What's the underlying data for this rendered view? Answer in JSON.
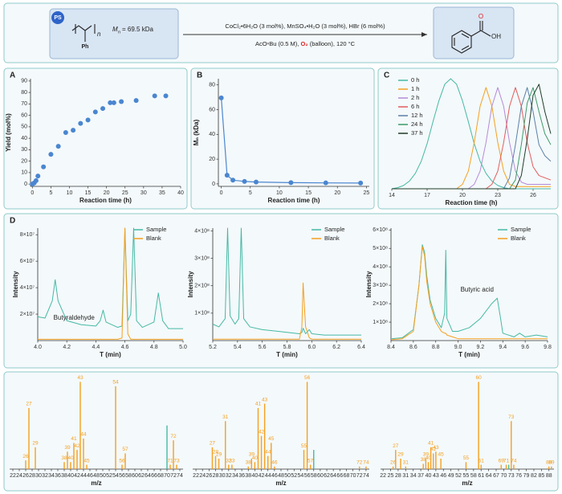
{
  "scheme": {
    "badge": "PS",
    "repeat": "n",
    "substituent": "Ph",
    "mn_symbol": "M",
    "mn_subscript": "n",
    "mn_value": "= 69.5 kDa",
    "conditions_top": "CoCl₂•6H₂O (3 mol%), MnSO₄•H₂O (3 mol%), HBr (6 mol%)",
    "conditions_bottom_1": "AcOⁿBu (0.5 M), ",
    "oxidant": "O₂",
    "conditions_bottom_2": " (balloon), 120 °C",
    "product_o": "O",
    "product_oh": "OH"
  },
  "chart_data": [
    {
      "type": "scatter",
      "panel": "A",
      "x_label": "Reaction time (h)",
      "y_label": "Yield (mol%)",
      "color": "#4a86d0",
      "x": [
        0,
        0.5,
        1,
        1.5,
        3,
        5,
        7,
        9,
        11,
        13,
        15,
        17,
        19,
        21,
        22,
        24,
        28,
        33,
        36
      ],
      "values": [
        0,
        1,
        3,
        7,
        15,
        26,
        33,
        45,
        47,
        53,
        56,
        63,
        66,
        71,
        71,
        72,
        73,
        77,
        77
      ],
      "xlim": [
        -0.5,
        40
      ],
      "xticks": [
        0,
        5,
        10,
        15,
        20,
        25,
        30,
        35,
        40
      ],
      "ylim": [
        -2,
        92
      ],
      "yticks": [
        0,
        10,
        20,
        30,
        40,
        50,
        60,
        70,
        80,
        90
      ]
    },
    {
      "type": "line",
      "markers": true,
      "panel": "B",
      "x_label": "Reaction time (h)",
      "y_label": "Mₙ (kDa)",
      "color": "#4a86d0",
      "x": [
        0,
        1,
        2,
        4,
        6,
        12,
        18,
        24
      ],
      "values": [
        69.5,
        7,
        3,
        2,
        1.5,
        1,
        0.8,
        0.7
      ],
      "xlim": [
        -0.5,
        25.5
      ],
      "xticks": [
        0,
        5,
        10,
        15,
        20,
        25
      ],
      "ylim": [
        -2,
        85
      ],
      "yticks": [
        0,
        20,
        40,
        60,
        80
      ]
    },
    {
      "type": "line",
      "panel": "C",
      "x_label": "Reaction time (h)",
      "legend": "upper left",
      "x": [
        14,
        14.5,
        15,
        15.5,
        16,
        16.5,
        17,
        17.5,
        18,
        18.5,
        19,
        19.5,
        20,
        20.5,
        21,
        21.5,
        22,
        22.5,
        23,
        23.5,
        24,
        24.5,
        25,
        25.5,
        26,
        26.5,
        27,
        27.5
      ],
      "xlim": [
        14,
        27.5
      ],
      "xticks": [
        14,
        17,
        20,
        23,
        26
      ],
      "ylim": [
        0,
        100
      ],
      "series": [
        {
          "name": "0 h",
          "color": "#45b9a5",
          "values": [
            0,
            1,
            3,
            7,
            14,
            25,
            41,
            61,
            80,
            95,
            100,
            95,
            80,
            61,
            41,
            25,
            14,
            7,
            3,
            1,
            0,
            0,
            0,
            0,
            0,
            0,
            0,
            0
          ]
        },
        {
          "name": "1 h",
          "color": "#f5a020",
          "values": [
            0,
            0,
            0,
            0,
            0,
            0,
            0,
            0,
            0,
            0,
            0,
            0,
            4,
            16,
            42,
            75,
            92,
            75,
            42,
            16,
            4,
            2,
            2,
            2,
            2,
            2,
            2,
            2
          ]
        },
        {
          "name": "2 h",
          "color": "#b48ad8",
          "values": [
            0,
            0,
            0,
            0,
            0,
            0,
            0,
            0,
            0,
            0,
            0,
            0,
            0,
            0,
            4,
            16,
            42,
            75,
            92,
            75,
            42,
            16,
            6,
            4,
            4,
            4,
            4,
            4
          ]
        },
        {
          "name": "6 h",
          "color": "#e25c5c",
          "values": [
            0,
            0,
            0,
            0,
            0,
            0,
            0,
            0,
            0,
            0,
            0,
            0,
            0,
            0,
            0,
            0,
            0,
            4,
            16,
            42,
            75,
            92,
            75,
            42,
            20,
            12,
            10,
            8
          ]
        },
        {
          "name": "12 h",
          "color": "#5b80a8",
          "values": [
            0,
            0,
            0,
            0,
            0,
            0,
            0,
            0,
            0,
            0,
            0,
            0,
            0,
            0,
            0,
            0,
            0,
            0,
            0,
            0,
            10,
            40,
            75,
            92,
            70,
            40,
            30,
            25
          ]
        },
        {
          "name": "24 h",
          "color": "#3d9a68",
          "values": [
            0,
            0,
            0,
            0,
            0,
            0,
            0,
            0,
            0,
            0,
            0,
            0,
            0,
            0,
            0,
            0,
            0,
            0,
            0,
            0,
            0,
            8,
            40,
            78,
            92,
            70,
            50,
            40
          ]
        },
        {
          "name": "37 h",
          "color": "#1f3d2a",
          "values": [
            0,
            0,
            0,
            0,
            0,
            0,
            0,
            0,
            0,
            0,
            0,
            0,
            0,
            0,
            0,
            0,
            0,
            0,
            0,
            0,
            0,
            0,
            12,
            45,
            85,
            95,
            70,
            50
          ]
        }
      ]
    },
    {
      "type": "line",
      "panel": "D",
      "x_label": "T (min)",
      "y_label": "Intensity",
      "legend": "upper right",
      "annotation": "Butyraldehyde",
      "x": [
        4.0,
        4.05,
        4.1,
        4.12,
        4.14,
        4.2,
        4.3,
        4.4,
        4.43,
        4.45,
        4.47,
        4.55,
        4.58,
        4.6,
        4.62,
        4.64,
        4.66,
        4.68,
        4.72,
        4.8,
        4.83,
        4.86,
        4.9,
        5.0
      ],
      "xlim": [
        4,
        5
      ],
      "xticks": [
        {
          "value": 4,
          "label": "4.0"
        },
        4.2,
        4.4,
        4.6,
        4.8,
        {
          "value": 5,
          "label": "5.0"
        }
      ],
      "ylim": [
        0,
        85000000
      ],
      "yticks": [
        {
          "value": 20000000,
          "label": "2×10⁷"
        },
        {
          "value": 40000000,
          "label": "4×10⁷"
        },
        {
          "value": 60000000,
          "label": "6×10⁷"
        },
        {
          "value": 80000000,
          "label": "8×10⁷"
        }
      ],
      "series": [
        {
          "name": "Sample",
          "color": "#45b9a5",
          "values": [
            18000000,
            17000000,
            30000000,
            46000000,
            30000000,
            15000000,
            12000000,
            11000000,
            15000000,
            23000000,
            14000000,
            10000000,
            11000000,
            85000000,
            15000000,
            20000000,
            85000000,
            15000000,
            10000000,
            14000000,
            36000000,
            15000000,
            9000000,
            9000000
          ]
        },
        {
          "name": "Blank",
          "color": "#f5a020",
          "values": [
            1000000,
            1000000,
            1000000,
            1000000,
            1000000,
            1000000,
            1000000,
            1000000,
            1000000,
            1000000,
            1000000,
            1000000,
            2000000,
            85000000,
            5000000,
            1000000,
            1000000,
            1000000,
            1000000,
            1000000,
            1000000,
            1000000,
            1000000,
            1000000
          ]
        }
      ]
    },
    {
      "type": "line",
      "x_label": "T (min)",
      "y_label": "Intensity",
      "legend": "upper right",
      "x": [
        5.2,
        5.25,
        5.3,
        5.32,
        5.34,
        5.38,
        5.41,
        5.43,
        5.45,
        5.5,
        5.6,
        5.7,
        5.8,
        5.9,
        5.92,
        5.93,
        5.95,
        5.98,
        6.0,
        6.1,
        6.2,
        6.4
      ],
      "xlim": [
        5.2,
        6.4
      ],
      "xticks": [
        5.2,
        5.4,
        5.6,
        5.8,
        {
          "value": 6,
          "label": "6.0"
        },
        6.2,
        6.4
      ],
      "ylim": [
        0,
        410000000
      ],
      "yticks": [
        {
          "value": 100000000,
          "label": "1×10⁸"
        },
        {
          "value": 200000000,
          "label": "2×10⁸"
        },
        {
          "value": 300000000,
          "label": "3×10⁸"
        },
        {
          "value": 400000000,
          "label": "4×10⁸"
        }
      ],
      "series": [
        {
          "name": "Sample",
          "color": "#45b9a5",
          "values": [
            60000000,
            50000000,
            80000000,
            410000000,
            90000000,
            60000000,
            80000000,
            410000000,
            80000000,
            50000000,
            40000000,
            35000000,
            30000000,
            25000000,
            30000000,
            45000000,
            25000000,
            40000000,
            25000000,
            20000000,
            20000000,
            20000000
          ]
        },
        {
          "name": "Blank",
          "color": "#f5a020",
          "values": [
            5000000,
            5000000,
            5000000,
            5000000,
            5000000,
            5000000,
            5000000,
            5000000,
            5000000,
            5000000,
            5000000,
            5000000,
            5000000,
            5000000,
            50000000,
            210000000,
            50000000,
            10000000,
            5000000,
            5000000,
            5000000,
            5000000
          ]
        }
      ]
    },
    {
      "type": "line",
      "x_label": "T (min)",
      "y_label": "Intensity",
      "legend": "upper right",
      "annotation": "Butyric acid",
      "x": [
        8.4,
        8.5,
        8.6,
        8.65,
        8.68,
        8.7,
        8.72,
        8.75,
        8.8,
        8.85,
        8.88,
        8.89,
        8.9,
        8.95,
        9.0,
        9.1,
        9.2,
        9.3,
        9.35,
        9.38,
        9.4,
        9.5,
        9.55,
        9.6,
        9.7,
        9.8
      ],
      "xlim": [
        8.4,
        9.8
      ],
      "xticks": [
        8.4,
        8.6,
        8.8,
        {
          "value": 9,
          "label": "9.0"
        },
        9.2,
        9.4,
        9.6,
        9.8
      ],
      "ylim": [
        0,
        610000000
      ],
      "yticks": [
        {
          "value": 100000000,
          "label": "1×10⁸"
        },
        {
          "value": 200000000,
          "label": "2×10⁸"
        },
        {
          "value": 300000000,
          "label": "3×10⁸"
        },
        {
          "value": 400000000,
          "label": "4×10⁸"
        },
        {
          "value": 500000000,
          "label": "5×10⁸"
        },
        {
          "value": 600000000,
          "label": "6×10⁸"
        }
      ],
      "series": [
        {
          "name": "Sample",
          "color": "#45b9a5",
          "values": [
            10000000,
            15000000,
            60000000,
            300000000,
            520000000,
            480000000,
            350000000,
            220000000,
            120000000,
            70000000,
            150000000,
            490000000,
            120000000,
            50000000,
            50000000,
            70000000,
            120000000,
            200000000,
            230000000,
            120000000,
            40000000,
            20000000,
            40000000,
            20000000,
            30000000,
            20000000
          ]
        },
        {
          "name": "Blank",
          "color": "#f5a020",
          "values": [
            5000000,
            10000000,
            50000000,
            300000000,
            510000000,
            460000000,
            320000000,
            200000000,
            100000000,
            50000000,
            40000000,
            40000000,
            30000000,
            20000000,
            10000000,
            10000000,
            10000000,
            10000000,
            10000000,
            10000000,
            10000000,
            10000000,
            10000000,
            10000000,
            10000000,
            10000000
          ]
        }
      ]
    },
    {
      "type": "bar",
      "x_label": "m/z",
      "xlim": [
        21,
        75
      ],
      "ylim": [
        0,
        105
      ],
      "xticks": [
        22,
        24,
        26,
        28,
        30,
        32,
        34,
        36,
        38,
        40,
        42,
        44,
        46,
        48,
        50,
        52,
        54,
        56,
        58,
        60,
        62,
        64,
        66,
        68,
        70,
        72,
        74
      ],
      "series": [
        {
          "color": "#f5a020",
          "x": [
            26,
            27,
            29,
            38,
            39,
            40,
            41,
            42,
            43,
            44,
            45,
            54,
            56,
            57,
            71,
            72,
            73
          ],
          "values": [
            10,
            70,
            25,
            8,
            20,
            8,
            30,
            22,
            100,
            35,
            5,
            95,
            5,
            18,
            5,
            33,
            5
          ]
        },
        {
          "color": "#45b9a5",
          "show_labels": false,
          "x": [
            70
          ],
          "values": [
            50
          ]
        }
      ]
    },
    {
      "type": "bar",
      "x_label": "m/z",
      "xlim": [
        21,
        75
      ],
      "ylim": [
        0,
        105
      ],
      "xticks": [
        22,
        24,
        26,
        28,
        30,
        32,
        34,
        36,
        38,
        40,
        42,
        44,
        46,
        48,
        50,
        52,
        54,
        56,
        58,
        60,
        62,
        64,
        66,
        68,
        70,
        72,
        74
      ],
      "series": [
        {
          "color": "#f5a020",
          "x": [
            27,
            28,
            29,
            31,
            32,
            33,
            38,
            39,
            40,
            41,
            42,
            43,
            44,
            45,
            46,
            55,
            56,
            57,
            72,
            74
          ],
          "values": [
            25,
            15,
            12,
            55,
            5,
            5,
            3,
            12,
            8,
            70,
            38,
            75,
            15,
            30,
            3,
            22,
            100,
            5,
            3,
            3
          ]
        },
        {
          "color": "#45b9a5",
          "show_labels": false,
          "x": [
            58
          ],
          "values": [
            22
          ]
        }
      ]
    },
    {
      "type": "bar",
      "x_label": "m/z",
      "xlim": [
        21,
        90
      ],
      "ylim": [
        0,
        105
      ],
      "xticks": [
        22,
        25,
        28,
        31,
        34,
        37,
        40,
        43,
        46,
        49,
        52,
        55,
        58,
        61,
        64,
        67,
        70,
        73,
        76,
        79,
        82,
        85,
        88
      ],
      "series": [
        {
          "color": "#f5a020",
          "x": [
            26,
            27,
            29,
            31,
            38,
            39,
            40,
            41,
            42,
            43,
            45,
            55,
            60,
            61,
            69,
            71,
            73,
            74,
            88,
            89
          ],
          "values": [
            3,
            22,
            12,
            3,
            6,
            12,
            8,
            25,
            18,
            20,
            12,
            8,
            100,
            5,
            5,
            5,
            55,
            5,
            3,
            3
          ]
        },
        {
          "color": "#45b9a5",
          "show_labels": false,
          "x": [
            72
          ],
          "values": [
            5
          ]
        }
      ]
    }
  ]
}
